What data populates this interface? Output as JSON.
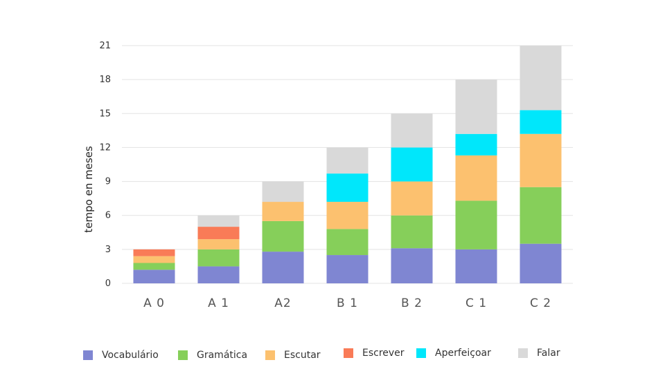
{
  "chart_data": {
    "type": "bar",
    "stacked": true,
    "categories": [
      "A 0",
      "A 1",
      "A2",
      "B 1",
      "B 2",
      "C 1",
      "C 2"
    ],
    "ylabel": "tempo en meses",
    "ylim": [
      0,
      21
    ],
    "yticks": [
      0,
      3,
      6,
      9,
      12,
      15,
      18,
      21
    ],
    "grid": true,
    "legend_position": "bottom",
    "series": [
      {
        "name": "Vocabulário",
        "color": "#7f86d2",
        "values": [
          1.2,
          1.5,
          2.8,
          2.5,
          3.1,
          3.0,
          3.5
        ]
      },
      {
        "name": "Gramática",
        "color": "#86cf5a",
        "values": [
          0.6,
          1.5,
          2.7,
          2.3,
          2.9,
          4.3,
          5.0
        ]
      },
      {
        "name": "Escutar",
        "color": "#fcc16f",
        "values": [
          0.6,
          0.9,
          1.7,
          2.4,
          3.0,
          4.0,
          4.7
        ]
      },
      {
        "name": "Escrever",
        "color": "#f97b57",
        "values": [
          0.6,
          1.1,
          0,
          0,
          0,
          0,
          0
        ]
      },
      {
        "name": "Aperfeiçoar",
        "color": "#00e7fb",
        "values": [
          0,
          0,
          0,
          2.5,
          3.0,
          1.9,
          2.1
        ]
      },
      {
        "name": "Falar",
        "color": "#d9d9d9",
        "values": [
          0,
          1.0,
          1.8,
          2.3,
          3.0,
          4.8,
          5.7
        ]
      }
    ]
  }
}
